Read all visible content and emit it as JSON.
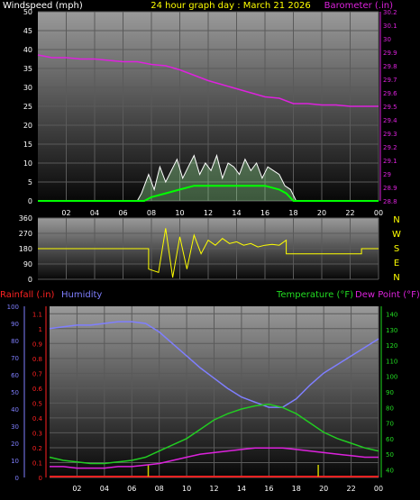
{
  "header": {
    "left_label": "Windspeed (mph)",
    "center_label": "24 hour graph day : March 21 2026",
    "right_label": "Barometer (.in)"
  },
  "x_ticks": [
    "02",
    "04",
    "06",
    "08",
    "10",
    "12",
    "14",
    "16",
    "18",
    "20",
    "22",
    "00"
  ],
  "direction_labels": [
    "N",
    "W",
    "S",
    "E",
    "N"
  ],
  "bottom_header": {
    "rain_label": "Rainfall (.in)",
    "humidity_label": "Humidity",
    "temp_label": "Temperature (°F)",
    "dew_label": "Dew Point (°F)"
  },
  "colors": {
    "wind_gust": "#ffffff",
    "wind_avg": "#00ff00",
    "wind_fill": "#a0f0a0",
    "barometer": "#dd22dd",
    "direction": "#ffff00",
    "humidity": "#7f7fff",
    "temperature": "#22cc22",
    "dewpoint": "#dd22dd",
    "rain": "#ff2222",
    "rain_tick": "#cccc00"
  },
  "chart_data": [
    {
      "type": "line",
      "name_key": "wind_barometer",
      "x_unit": "hour",
      "xlim": [
        0,
        24
      ],
      "y_left": {
        "ticks": [
          0,
          5,
          10,
          15,
          20,
          25,
          30,
          35,
          40,
          45,
          50
        ],
        "ylim": [
          0,
          50
        ]
      },
      "y_right": {
        "ticks": [
          "28.8",
          "28.9",
          "29",
          "29.1",
          "29.2",
          "29.3",
          "29.4",
          "29.5",
          "29.6",
          "29.7",
          "29.8",
          "29.9",
          "30",
          "30.1",
          "30.2"
        ],
        "ylim": [
          28.8,
          30.2
        ]
      },
      "barometer": {
        "x": [
          0,
          1,
          2,
          3,
          4,
          5,
          6,
          7,
          8,
          9,
          10,
          11,
          12,
          13,
          14,
          15,
          16,
          17,
          18,
          19,
          20,
          21,
          22,
          23,
          24
        ],
        "y": [
          29.88,
          29.86,
          29.86,
          29.85,
          29.85,
          29.84,
          29.83,
          29.83,
          29.81,
          29.8,
          29.77,
          29.73,
          29.69,
          29.66,
          29.63,
          29.6,
          29.57,
          29.56,
          29.52,
          29.52,
          29.51,
          29.51,
          29.5,
          29.5,
          29.5
        ]
      },
      "wind_gust": {
        "x": [
          0,
          7,
          7.3,
          7.8,
          8.2,
          8.6,
          9,
          9.4,
          9.8,
          10.2,
          10.6,
          11,
          11.4,
          11.8,
          12.2,
          12.6,
          13,
          13.4,
          13.8,
          14.2,
          14.6,
          15,
          15.4,
          15.8,
          16.2,
          16.6,
          17,
          17.4,
          17.8,
          18.2,
          24
        ],
        "y": [
          0,
          0,
          2,
          7,
          3,
          9,
          5,
          8,
          11,
          6,
          9,
          12,
          7,
          10,
          8,
          12,
          6,
          10,
          9,
          7,
          11,
          8,
          10,
          6,
          9,
          8,
          7,
          4,
          3,
          0,
          0
        ]
      },
      "wind_avg": {
        "x": [
          0,
          7.5,
          8,
          9,
          10,
          11,
          12,
          13,
          14,
          15,
          16,
          17,
          17.5,
          18,
          24
        ],
        "y": [
          0,
          0,
          1,
          2,
          3,
          4,
          4,
          4,
          4,
          4,
          4,
          3,
          2,
          0,
          0
        ]
      }
    },
    {
      "type": "line",
      "name_key": "wind_direction",
      "x_unit": "hour",
      "xlim": [
        0,
        24
      ],
      "y_left": {
        "ticks": [
          0,
          90,
          180,
          270,
          360
        ],
        "ylim": [
          0,
          360
        ]
      },
      "direction": {
        "x": [
          0,
          7.8,
          7.8,
          8.5,
          9,
          9.5,
          10,
          10.5,
          11,
          11.5,
          12,
          12.5,
          13,
          13.5,
          14,
          14.5,
          15,
          15.5,
          16,
          16.5,
          17,
          17.5,
          17.5,
          22.8,
          22.8,
          24
        ],
        "y": [
          180,
          180,
          60,
          40,
          300,
          10,
          250,
          60,
          260,
          150,
          230,
          200,
          240,
          210,
          220,
          200,
          210,
          190,
          200,
          205,
          200,
          230,
          150,
          150,
          180,
          180
        ]
      }
    },
    {
      "type": "line",
      "name_key": "temp_humidity_rain",
      "x_unit": "hour",
      "xlim": [
        0,
        24
      ],
      "y_humidity": {
        "ticks": [
          0,
          10,
          20,
          30,
          40,
          50,
          60,
          70,
          80,
          90,
          100
        ],
        "ylim": [
          0,
          100
        ]
      },
      "y_rain": {
        "ticks": [
          "0",
          "0.1",
          "0.2",
          "0.3",
          "0.4",
          "0.5",
          "0.6",
          "0.7",
          "0.8",
          "0.9",
          "1",
          "1.1"
        ],
        "ylim": [
          0,
          1.15
        ]
      },
      "y_temp": {
        "ticks": [
          40,
          50,
          60,
          70,
          80,
          90,
          100,
          110,
          120,
          130,
          140
        ],
        "ylim": [
          35,
          145
        ]
      },
      "humidity": {
        "x": [
          0,
          1,
          2,
          3,
          4,
          5,
          6,
          7,
          8,
          9,
          10,
          11,
          12,
          13,
          14,
          15,
          16,
          17,
          18,
          19,
          20,
          21,
          22,
          23,
          24
        ],
        "y": [
          87,
          88,
          89,
          89,
          90,
          91,
          91,
          90,
          85,
          78,
          71,
          64,
          58,
          52,
          47,
          44,
          41,
          41,
          46,
          54,
          61,
          66,
          71,
          76,
          81
        ]
      },
      "temperature": {
        "x": [
          0,
          1,
          2,
          3,
          4,
          5,
          6,
          7,
          8,
          9,
          10,
          11,
          12,
          13,
          14,
          15,
          16,
          17,
          18,
          19,
          20,
          21,
          22,
          23,
          24
        ],
        "y": [
          48,
          46,
          45,
          44,
          44,
          45,
          46,
          48,
          52,
          56,
          60,
          66,
          72,
          76,
          79,
          81,
          82,
          80,
          76,
          70,
          64,
          60,
          57,
          54,
          52
        ]
      },
      "dewpoint": {
        "x": [
          0,
          1,
          2,
          3,
          4,
          5,
          6,
          7,
          8,
          9,
          10,
          11,
          12,
          13,
          14,
          15,
          16,
          17,
          18,
          19,
          20,
          21,
          22,
          23,
          24
        ],
        "y": [
          42,
          42,
          41,
          41,
          41,
          42,
          42,
          43,
          44,
          46,
          48,
          50,
          51,
          52,
          53,
          54,
          54,
          54,
          53,
          52,
          51,
          50,
          49,
          48,
          48
        ]
      },
      "rain_ticks_x": [
        7.2,
        19.6
      ]
    }
  ]
}
